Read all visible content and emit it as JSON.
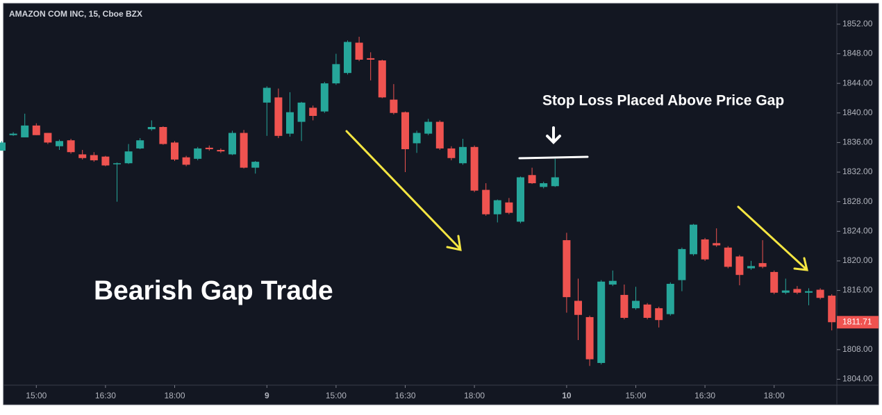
{
  "chart_data": {
    "type": "candlestick",
    "title": "AMAZON COM INC, 15, Cboe BZX",
    "annotations": [
      "Bearish Gap Trade",
      "Stop Loss Placed Above Price Gap"
    ],
    "categories": [
      null,
      null,
      null,
      "15:00",
      null,
      null,
      null,
      null,
      null,
      "16:30",
      null,
      null,
      null,
      null,
      null,
      "18:00",
      null,
      null,
      null,
      null,
      null,
      null,
      null,
      "9",
      null,
      null,
      null,
      null,
      null,
      "15:00",
      null,
      null,
      null,
      null,
      null,
      "16:30",
      null,
      null,
      null,
      null,
      null,
      "18:00",
      null,
      null,
      null,
      null,
      null,
      null,
      null,
      "10",
      null,
      null,
      null,
      null,
      null,
      "15:00",
      null,
      null,
      null,
      null,
      null,
      "16:30",
      null,
      null,
      null,
      null,
      null,
      "18:00",
      null,
      null,
      null,
      null,
      null
    ],
    "open": [
      1834.9,
      1837.0,
      1836.7,
      1838.3,
      1837.3,
      1835.5,
      1836.3,
      1834.4,
      1834.3,
      1834.1,
      1833.1,
      1833.2,
      1835.2,
      1837.8,
      1838.1,
      1836.0,
      1834.0,
      1833.8,
      1835.3,
      1835.0,
      1834.4,
      1837.3,
      1832.6,
      1841.4,
      1842.1,
      1837.2,
      1838.8,
      1840.7,
      1840.2,
      1844.0,
      1845.4,
      1849.5,
      1847.4,
      1847.1,
      1841.8,
      1840.1,
      1835.9,
      1837.2,
      1838.8,
      1835.2,
      1833.2,
      1835.4,
      1829.6,
      1826.3,
      1827.9,
      1825.3,
      1831.6,
      1830.0,
      1830.1,
      1822.8,
      1814.6,
      1812.4,
      1806.2,
      1816.8,
      1815.4,
      1813.6,
      1814.1,
      1813.6,
      1812.8,
      1817.4,
      1820.9,
      1822.9,
      1822.4,
      1821.8,
      1820.6,
      1819.0,
      1819.7,
      1818.5,
      1815.7,
      1816.2,
      1815.7,
      1816.1,
      1815.3
    ],
    "high": [
      1836.2,
      1837.4,
      1839.9,
      1838.6,
      1837.3,
      1836.4,
      1836.5,
      1835.0,
      1834.7,
      1834.2,
      1833.3,
      1835.8,
      1836.6,
      1839.0,
      1838.2,
      1836.2,
      1834.2,
      1835.4,
      1835.6,
      1835.2,
      1837.6,
      1837.7,
      1833.5,
      1843.6,
      1843.3,
      1842.8,
      1841.5,
      1841.0,
      1844.2,
      1848.0,
      1849.8,
      1850.3,
      1848.2,
      1847.2,
      1843.9,
      1840.2,
      1837.6,
      1839.2,
      1839.0,
      1835.5,
      1836.5,
      1835.6,
      1830.5,
      1828.3,
      1828.5,
      1831.4,
      1832.6,
      1830.7,
      1833.8,
      1823.8,
      1817.6,
      1812.6,
      1817.4,
      1818.7,
      1816.8,
      1816.5,
      1814.3,
      1813.8,
      1817.1,
      1821.8,
      1825.0,
      1823.1,
      1824.4,
      1822.0,
      1820.8,
      1820.0,
      1822.8,
      1818.7,
      1817.6,
      1816.6,
      1816.3,
      1816.3,
      1815.5
    ],
    "low": [
      1834.9,
      1836.9,
      1836.7,
      1837.0,
      1835.8,
      1835.0,
      1834.5,
      1833.7,
      1833.4,
      1832.8,
      1828.0,
      1833.1,
      1835.1,
      1837.6,
      1835.7,
      1833.5,
      1832.8,
      1833.6,
      1834.9,
      1834.6,
      1834.3,
      1832.5,
      1831.8,
      1836.9,
      1836.6,
      1836.8,
      1836.2,
      1839.0,
      1840.0,
      1843.8,
      1845.2,
      1847.0,
      1844.4,
      1842.0,
      1839.8,
      1832.0,
      1834.6,
      1837.0,
      1835.0,
      1833.6,
      1833.0,
      1829.3,
      1826.1,
      1825.2,
      1826.3,
      1825.1,
      1830.4,
      1829.8,
      1830.0,
      1813.0,
      1809.3,
      1805.8,
      1806.0,
      1816.6,
      1812.1,
      1813.4,
      1812.1,
      1811.0,
      1812.6,
      1815.9,
      1820.7,
      1820.0,
      1821.9,
      1819.0,
      1816.7,
      1818.8,
      1819.0,
      1815.5,
      1815.5,
      1815.5,
      1814.0,
      1814.8,
      1810.6
    ],
    "close": [
      1836.0,
      1837.2,
      1838.3,
      1837.0,
      1836.0,
      1836.2,
      1834.7,
      1833.9,
      1833.6,
      1832.9,
      1833.2,
      1834.8,
      1836.3,
      1838.1,
      1835.8,
      1833.7,
      1833.0,
      1835.2,
      1835.1,
      1834.8,
      1837.3,
      1832.6,
      1833.4,
      1843.4,
      1836.9,
      1840.1,
      1841.4,
      1839.6,
      1844.0,
      1846.6,
      1849.6,
      1847.2,
      1847.2,
      1842.1,
      1840.0,
      1835.1,
      1837.3,
      1838.8,
      1835.2,
      1833.9,
      1835.4,
      1829.5,
      1826.3,
      1828.2,
      1826.5,
      1831.3,
      1830.5,
      1830.5,
      1831.3,
      1815.1,
      1812.7,
      1806.7,
      1817.2,
      1817.3,
      1812.3,
      1814.6,
      1812.3,
      1812.0,
      1816.9,
      1821.6,
      1824.9,
      1820.2,
      1822.1,
      1819.2,
      1818.1,
      1819.3,
      1819.2,
      1815.7,
      1816.0,
      1815.7,
      1815.9,
      1815.0,
      1811.71
    ],
    "up_color": "#26a69a",
    "down_color": "#ef5350",
    "ylim": [
      1803.2,
      1854.8
    ],
    "yticks": [
      {
        "value": 1804,
        "label": "1804.00"
      },
      {
        "value": 1808,
        "label": "1808.00"
      },
      {
        "value": 1812,
        "label": "1812.00"
      },
      {
        "value": 1816,
        "label": "1816.00"
      },
      {
        "value": 1820,
        "label": "1820.00"
      },
      {
        "value": 1824,
        "label": "1824.00"
      },
      {
        "value": 1828,
        "label": "1828.00"
      },
      {
        "value": 1832,
        "label": "1832.00"
      },
      {
        "value": 1836,
        "label": "1836.00"
      },
      {
        "value": 1840,
        "label": "1840.00"
      },
      {
        "value": 1844,
        "label": "1844.00"
      },
      {
        "value": 1848,
        "label": "1848.00"
      },
      {
        "value": 1852,
        "label": "1852.00"
      }
    ],
    "grid": false
  }
}
